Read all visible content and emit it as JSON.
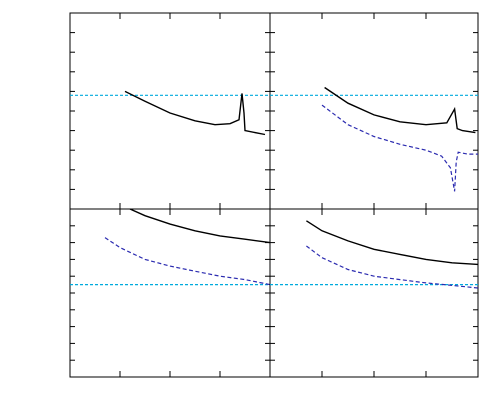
{
  "colors": {
    "solid_series": "#000000",
    "dashed_series": "#2b2bb0",
    "reference_line": "#00aadd"
  },
  "chart_data": [
    {
      "type": "line",
      "panel": "top-left",
      "xlim": [
        0,
        4
      ],
      "ylim": [
        0,
        10
      ],
      "grid": false,
      "reference_y": 5.8,
      "series": [
        {
          "style": "solid",
          "x": [
            1.1,
            1.5,
            2.0,
            2.5,
            2.9,
            3.2,
            3.38,
            3.44,
            3.48,
            3.5,
            3.9
          ],
          "y": [
            6.0,
            5.5,
            4.9,
            4.5,
            4.3,
            4.35,
            4.55,
            5.9,
            4.9,
            4.0,
            3.8
          ]
        }
      ]
    },
    {
      "type": "line",
      "panel": "top-right",
      "xlim": [
        0,
        4
      ],
      "ylim": [
        0,
        10
      ],
      "grid": false,
      "reference_y": 5.8,
      "series": [
        {
          "style": "solid",
          "x": [
            1.05,
            1.5,
            2.0,
            2.5,
            3.0,
            3.4,
            3.55,
            3.6,
            3.7,
            3.95
          ],
          "y": [
            6.2,
            5.4,
            4.8,
            4.45,
            4.3,
            4.4,
            5.1,
            4.1,
            4.0,
            3.9
          ]
        },
        {
          "style": "dashed",
          "x": [
            1.0,
            1.5,
            2.0,
            2.5,
            3.0,
            3.3,
            3.47,
            3.55,
            3.58,
            3.62,
            3.8,
            4.0
          ],
          "y": [
            5.3,
            4.3,
            3.7,
            3.3,
            3.0,
            2.7,
            2.1,
            0.9,
            2.4,
            2.9,
            2.8,
            2.8
          ]
        }
      ]
    },
    {
      "type": "line",
      "panel": "bottom-left",
      "xlim": [
        0,
        4
      ],
      "ylim": [
        0,
        10
      ],
      "grid": false,
      "reference_y": 5.5,
      "series": [
        {
          "style": "solid",
          "x": [
            1.2,
            1.5,
            2.0,
            2.5,
            3.0,
            3.5,
            4.0
          ],
          "y": [
            10.0,
            9.6,
            9.1,
            8.7,
            8.4,
            8.2,
            8.0
          ]
        },
        {
          "style": "dashed",
          "x": [
            0.7,
            1.0,
            1.5,
            2.0,
            2.5,
            3.0,
            3.5,
            4.0
          ],
          "y": [
            8.3,
            7.7,
            7.0,
            6.6,
            6.3,
            6.0,
            5.8,
            5.5
          ]
        }
      ]
    },
    {
      "type": "line",
      "panel": "bottom-right",
      "xlim": [
        0,
        4
      ],
      "ylim": [
        0,
        10
      ],
      "grid": false,
      "reference_y": 5.5,
      "series": [
        {
          "style": "solid",
          "x": [
            0.7,
            1.0,
            1.5,
            2.0,
            2.5,
            3.0,
            3.5,
            4.0
          ],
          "y": [
            9.3,
            8.7,
            8.1,
            7.6,
            7.3,
            7.0,
            6.8,
            6.7
          ]
        },
        {
          "style": "dashed",
          "x": [
            0.7,
            1.0,
            1.5,
            2.0,
            2.5,
            3.0,
            3.5,
            4.0
          ],
          "y": [
            7.8,
            7.1,
            6.4,
            6.0,
            5.8,
            5.6,
            5.45,
            5.3
          ]
        }
      ]
    }
  ]
}
